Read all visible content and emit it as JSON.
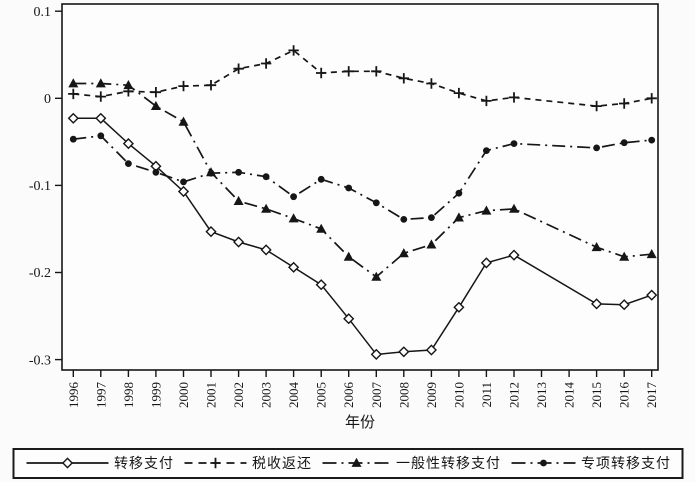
{
  "figure": {
    "xlabel": "年份",
    "line_color": "#161616",
    "plot_background": "#fdfdfd"
  },
  "chart_data": {
    "type": "line",
    "title": "",
    "xlabel": "年份",
    "ylabel": "",
    "x": [
      1996,
      1997,
      1998,
      1999,
      2000,
      2001,
      2002,
      2003,
      2004,
      2005,
      2006,
      2007,
      2008,
      2009,
      2010,
      2011,
      2012,
      2013,
      2014,
      2015,
      2016,
      2017
    ],
    "ylim": [
      -0.3,
      0.1
    ],
    "yticks": [
      0.1,
      0,
      -0.1,
      -0.2,
      -0.3
    ],
    "ytick_labels": [
      "0.1",
      "0",
      "-0.1",
      "-0.2",
      "-0.3"
    ],
    "grid": false,
    "legend_position": "bottom",
    "series": [
      {
        "id": "transfer-payment",
        "name": "转移支付",
        "marker": "diamond-open",
        "line": "solid",
        "values": [
          -0.023,
          -0.023,
          -0.052,
          -0.078,
          -0.107,
          -0.153,
          -0.165,
          -0.174,
          -0.194,
          -0.214,
          -0.253,
          -0.294,
          -0.291,
          -0.289,
          -0.24,
          -0.189,
          -0.18,
          null,
          null,
          -0.236,
          -0.237,
          -0.226
        ]
      },
      {
        "id": "tax-rebate",
        "name": "税收返还",
        "marker": "plus",
        "line": "dashed",
        "values": [
          0.005,
          0.002,
          0.008,
          0.007,
          0.014,
          0.015,
          0.034,
          0.04,
          0.055,
          0.029,
          0.031,
          0.031,
          0.023,
          0.017,
          0.006,
          -0.003,
          0.001,
          null,
          null,
          -0.009,
          -0.006,
          0.0
        ]
      },
      {
        "id": "general-transfer-payment",
        "name": "一般性转移支付",
        "marker": "triangle-filled",
        "line": "dash-dot",
        "values": [
          0.017,
          0.017,
          0.015,
          -0.009,
          -0.027,
          -0.085,
          -0.118,
          -0.127,
          -0.138,
          -0.15,
          -0.182,
          -0.205,
          -0.178,
          -0.168,
          -0.137,
          -0.129,
          -0.127,
          null,
          null,
          -0.171,
          -0.182,
          -0.179
        ]
      },
      {
        "id": "special-transfer-payment",
        "name": "专项转移支付",
        "marker": "circle-filled",
        "line": "dash-dot",
        "values": [
          -0.047,
          -0.043,
          -0.075,
          -0.085,
          -0.096,
          -0.086,
          -0.085,
          -0.09,
          -0.113,
          -0.093,
          -0.103,
          -0.12,
          -0.139,
          -0.137,
          -0.109,
          -0.06,
          -0.052,
          null,
          null,
          -0.057,
          -0.051,
          -0.048
        ]
      }
    ]
  }
}
